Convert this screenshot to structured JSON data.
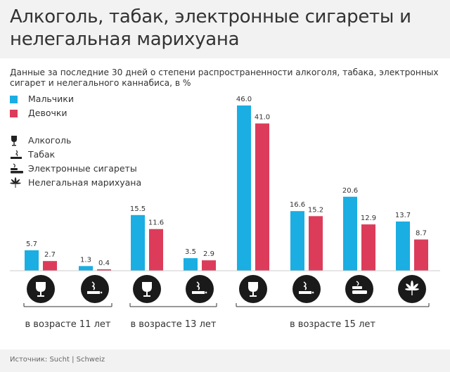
{
  "title": "Алкоголь, табак, электронные сигареты и нелегальная марихуана",
  "subtitle": "Данные за последние 30 дней о степени распространенности алкоголя, табака, электронных сигарет и нелегального каннабиса, в %",
  "source": "Источник: Sucht | Schweiz",
  "colors": {
    "boys": "#1aaee3",
    "girls": "#dc3c5a",
    "icon_bg": "#1a1a1a",
    "baseline": "#cccccc",
    "bracket": "#333333"
  },
  "legend": {
    "series": [
      {
        "label": "Мальчики",
        "color": "#1aaee3"
      },
      {
        "label": "Девочки",
        "color": "#dc3c5a"
      }
    ],
    "icons": [
      {
        "label": "Алкоголь",
        "icon": "wine-glass-icon"
      },
      {
        "label": "Табак",
        "icon": "cigarette-icon"
      },
      {
        "label": "Электронные сигареты",
        "icon": "e-cigarette-icon"
      },
      {
        "label": "Нелегальная марихуана",
        "icon": "cannabis-leaf-icon"
      }
    ]
  },
  "chart_data": {
    "type": "bar",
    "series": [
      {
        "name": "Мальчики",
        "values": [
          5.7,
          1.3,
          15.5,
          3.5,
          46.0,
          16.6,
          20.6,
          13.7
        ],
        "labels": [
          "5.7",
          "1.3",
          "15.5",
          "3.5",
          "46.0",
          "16.6",
          "20.6",
          "13.7"
        ]
      },
      {
        "name": "Девочки",
        "values": [
          2.7,
          0.4,
          11.6,
          2.9,
          41.0,
          15.2,
          12.9,
          8.7
        ],
        "labels": [
          "2.7",
          "0.4",
          "11.6",
          "2.9",
          "41.0",
          "15.2",
          "12.9",
          "8.7"
        ]
      }
    ],
    "categories": [
      "Алкоголь",
      "Табак",
      "Алкоголь",
      "Табак",
      "Алкоголь",
      "Табак",
      "Электронные сигареты",
      "Нелегальная марихуана"
    ],
    "category_icons": [
      "wine-glass-icon",
      "cigarette-icon",
      "wine-glass-icon",
      "cigarette-icon",
      "wine-glass-icon",
      "cigarette-icon",
      "e-cigarette-icon",
      "cannabis-leaf-icon"
    ],
    "groups": [
      {
        "label": "в возрасте 11 лет",
        "categories": [
          0,
          1
        ]
      },
      {
        "label": "в возрасте 13 лет",
        "categories": [
          2,
          3
        ]
      },
      {
        "label": "в возрасте 15 лет",
        "categories": [
          4,
          5,
          6,
          7
        ]
      }
    ],
    "ylim": [
      0,
      46
    ],
    "grid": false,
    "legend_position": "top-left"
  }
}
